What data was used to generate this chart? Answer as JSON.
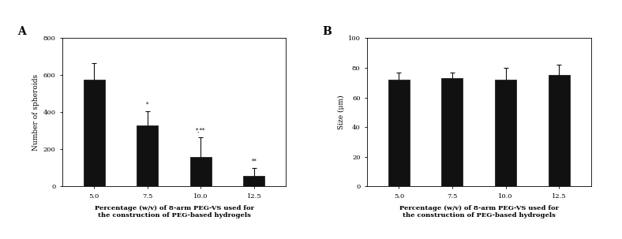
{
  "panel_A": {
    "label": "A",
    "categories": [
      "5.0",
      "7.5",
      "10.0",
      "12.5"
    ],
    "values": [
      575,
      330,
      160,
      55
    ],
    "errors": [
      90,
      75,
      105,
      45
    ],
    "ylim": [
      0,
      800
    ],
    "yticks": [
      0,
      200,
      400,
      600,
      800
    ],
    "ylabel": "Number of spheroids",
    "xlabel_line1": "Percentage (w/v) of 8-arm PEG-VS used for",
    "xlabel_line2": "the construction of PEG-based hydrogels",
    "bar_color": "#111111",
    "error_color": "#111111",
    "annotations": [
      "",
      "*",
      "*,**",
      "**"
    ]
  },
  "panel_B": {
    "label": "B",
    "categories": [
      "5.0",
      "7.5",
      "10.0",
      "12.5"
    ],
    "values": [
      72,
      73,
      72,
      75
    ],
    "errors": [
      5,
      4,
      8,
      7
    ],
    "ylim": [
      0,
      100
    ],
    "yticks": [
      0,
      20,
      40,
      60,
      80,
      100
    ],
    "ylabel": "Size (μm)",
    "xlabel_line1": "Percentage (w/v) of 8-arm PEG-VS used for",
    "xlabel_line2": "the construction of PEG-based hydrogels",
    "bar_color": "#111111",
    "error_color": "#111111",
    "annotations": [
      "",
      "",
      "",
      ""
    ]
  },
  "figure_bg": "#ffffff",
  "axes_bg": "#ffffff",
  "font_family": "DejaVu Serif"
}
